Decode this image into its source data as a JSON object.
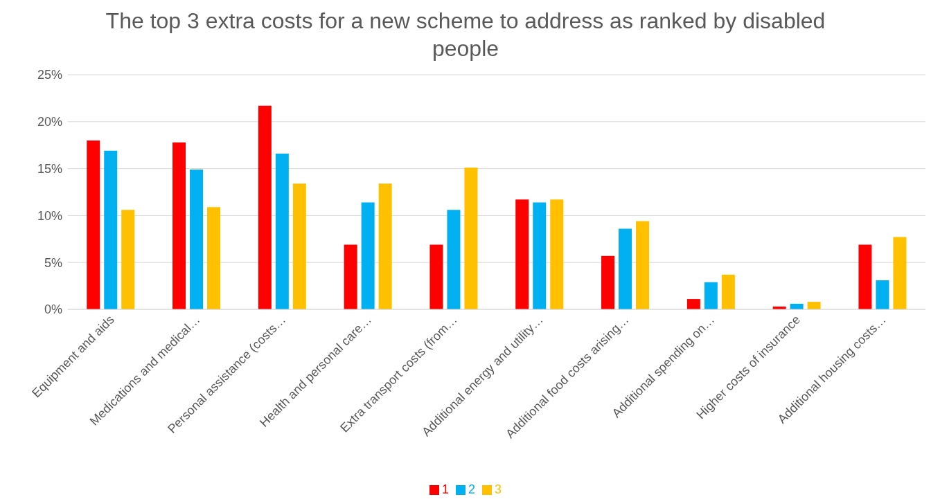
{
  "chart_data": {
    "type": "bar",
    "title": "The top 3 extra costs for a new scheme to address as ranked by disabled people",
    "categories": [
      "Equipment and aids",
      "Medications and medical…",
      "Personal assistance (costs…",
      "Health and personal care…",
      "Extra transport costs (from…",
      "Additional energy and utility…",
      "Additional food costs arising…",
      "Additional spending on…",
      "Higher costs of insurance",
      "Additional housing costs…"
    ],
    "series": [
      {
        "name": "1",
        "color": "#ff0000",
        "values": [
          18.0,
          17.8,
          21.7,
          6.9,
          6.9,
          11.7,
          5.7,
          1.1,
          0.3,
          6.9
        ]
      },
      {
        "name": "2",
        "color": "#00b0f0",
        "values": [
          16.9,
          14.9,
          16.6,
          11.4,
          10.6,
          11.4,
          8.6,
          2.9,
          0.6,
          3.1
        ]
      },
      {
        "name": "3",
        "color": "#ffc000",
        "values": [
          10.6,
          10.9,
          13.4,
          13.4,
          15.1,
          11.7,
          9.4,
          3.7,
          0.8,
          7.7
        ]
      }
    ],
    "ylim": [
      0,
      25
    ],
    "yticks": [
      {
        "value": 0,
        "label": "0%"
      },
      {
        "value": 5,
        "label": "5%"
      },
      {
        "value": 10,
        "label": "10%"
      },
      {
        "value": 15,
        "label": "15%"
      },
      {
        "value": 20,
        "label": "20%"
      },
      {
        "value": 25,
        "label": "25%"
      }
    ],
    "grid": "y",
    "legend": "bottom"
  }
}
